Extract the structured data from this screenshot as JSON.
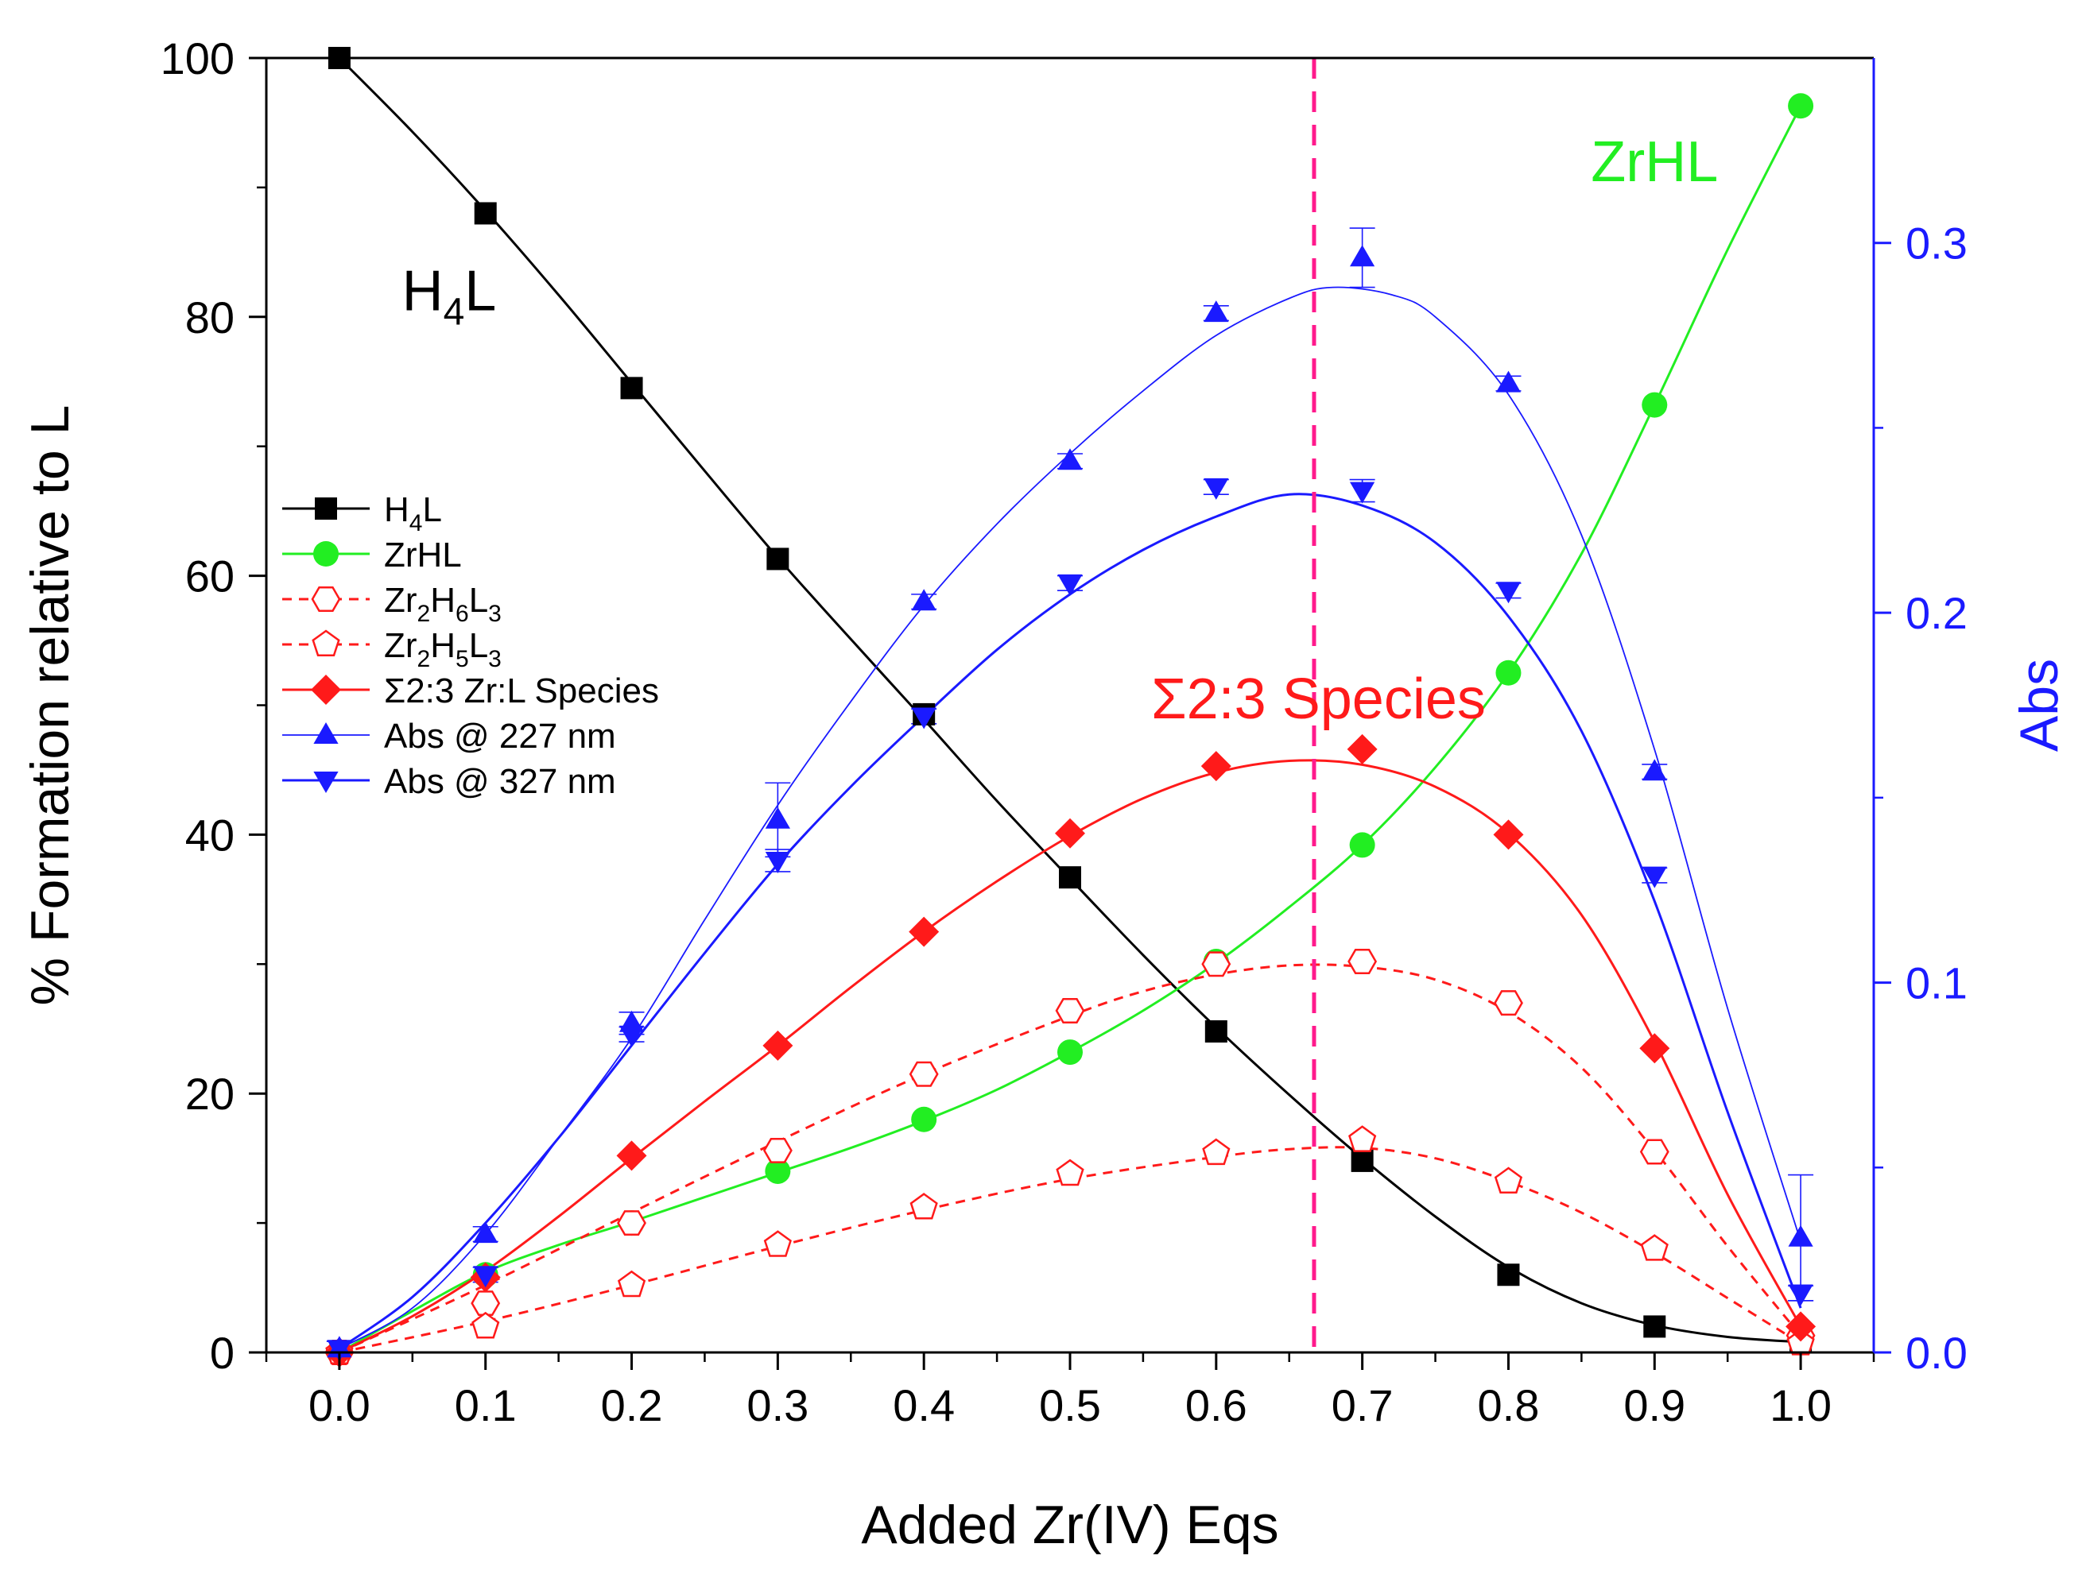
{
  "chart_data": {
    "type": "line",
    "title": "",
    "xlabel": "Added Zr(IV) Eqs",
    "ylabel": "% Formation relative to L",
    "y2label": "Abs",
    "xlim": [
      -0.05,
      1.05
    ],
    "ylim": [
      0,
      100
    ],
    "y2lim": [
      0,
      0.35
    ],
    "x_ticks": [
      0.0,
      0.1,
      0.2,
      0.3,
      0.4,
      0.5,
      0.6,
      0.7,
      0.8,
      0.9,
      1.0
    ],
    "x_tick_labels": [
      "0.0",
      "0.1",
      "0.2",
      "0.3",
      "0.4",
      "0.5",
      "0.6",
      "0.7",
      "0.8",
      "0.9",
      "1.0"
    ],
    "y_ticks": [
      0,
      20,
      40,
      60,
      80,
      100
    ],
    "y_tick_labels": [
      "0",
      "20",
      "40",
      "60",
      "80",
      "100"
    ],
    "y2_ticks": [
      0.0,
      0.1,
      0.2,
      0.3
    ],
    "y2_tick_labels": [
      "0.0",
      "0.1",
      "0.2",
      "0.3"
    ],
    "vline_x": 0.667,
    "colors": {
      "black": "#000000",
      "green": "#22ee22",
      "red": "#ff1a1a",
      "blue": "#1a1aff",
      "magenta": "#ff1a8c"
    },
    "x": [
      0.0,
      0.1,
      0.2,
      0.3,
      0.4,
      0.5,
      0.6,
      0.7,
      0.8,
      0.9,
      1.0
    ],
    "series": [
      {
        "name": "H4L",
        "axis": "left",
        "marker": "square",
        "color": "#000000",
        "line": "solid",
        "values": [
          100,
          88,
          74.5,
          61.3,
          49.3,
          36.7,
          24.8,
          14.8,
          6.0,
          2.0,
          0.8
        ]
      },
      {
        "name": "ZrHL",
        "axis": "left",
        "marker": "circle",
        "color": "#22ee22",
        "line": "solid",
        "values": [
          0,
          6.0,
          10.0,
          14.0,
          18.0,
          23.2,
          30.2,
          39.2,
          52.5,
          73.2,
          96.3
        ]
      },
      {
        "name": "Zr2H6L3",
        "axis": "left",
        "marker": "hexagon-open",
        "color": "#ff1a1a",
        "line": "dashed",
        "values": [
          0,
          3.8,
          10.0,
          15.6,
          21.5,
          26.4,
          30.0,
          30.2,
          27.0,
          15.5,
          1.3
        ]
      },
      {
        "name": "Zr2H5L3",
        "axis": "left",
        "marker": "pentagon-open",
        "color": "#ff1a1a",
        "line": "dashed",
        "values": [
          0,
          2.0,
          5.2,
          8.3,
          11.2,
          13.8,
          15.4,
          16.4,
          13.2,
          8.0,
          0.7
        ]
      },
      {
        "name": "Σ2:3 Zr:L Species",
        "axis": "left",
        "marker": "diamond",
        "color": "#ff1a1a",
        "line": "solid",
        "values": [
          0,
          5.8,
          15.2,
          23.7,
          32.5,
          40.1,
          45.3,
          46.6,
          40.0,
          23.5,
          2.0
        ]
      },
      {
        "name": "Abs @ 227 nm",
        "axis": "right",
        "marker": "triangle-up",
        "color": "#1a1aff",
        "line": "thin",
        "values": [
          0.001,
          0.032,
          0.089,
          0.144,
          0.203,
          0.241,
          0.281,
          0.296,
          0.262,
          0.157,
          0.031
        ],
        "errors": [
          0.002,
          0.002,
          0.003,
          0.01,
          0.002,
          0.002,
          0.002,
          0.008,
          0.002,
          0.002,
          0.017
        ]
      },
      {
        "name": "Abs @ 327 nm",
        "axis": "right",
        "marker": "triangle-down",
        "color": "#1a1aff",
        "line": "solid",
        "values": [
          0.001,
          0.021,
          0.086,
          0.133,
          0.172,
          0.208,
          0.234,
          0.233,
          0.206,
          0.129,
          0.016
        ],
        "errors": [
          0.002,
          0.002,
          0.002,
          0.003,
          0.002,
          0.002,
          0.002,
          0.003,
          0.002,
          0.002,
          0.002
        ]
      }
    ],
    "fits": [
      {
        "for": "H4L",
        "points": [
          [
            0,
            100
          ],
          [
            0.05,
            94.3
          ],
          [
            0.1,
            88.2
          ],
          [
            0.15,
            81.7
          ],
          [
            0.2,
            74.9
          ],
          [
            0.25,
            68.1
          ],
          [
            0.3,
            61.4
          ],
          [
            0.35,
            55.1
          ],
          [
            0.4,
            48.9
          ],
          [
            0.45,
            42.6
          ],
          [
            0.5,
            36.6
          ],
          [
            0.55,
            30.7
          ],
          [
            0.6,
            25.1
          ],
          [
            0.65,
            19.9
          ],
          [
            0.7,
            15.0
          ],
          [
            0.75,
            10.5
          ],
          [
            0.8,
            6.6
          ],
          [
            0.85,
            3.8
          ],
          [
            0.9,
            2.1
          ],
          [
            0.95,
            1.2
          ],
          [
            1.0,
            0.8
          ]
        ]
      },
      {
        "for": "ZrHL",
        "points": [
          [
            0,
            0
          ],
          [
            0.05,
            3.2
          ],
          [
            0.1,
            6.2
          ],
          [
            0.15,
            8.3
          ],
          [
            0.2,
            10.1
          ],
          [
            0.25,
            12.0
          ],
          [
            0.3,
            13.9
          ],
          [
            0.35,
            15.8
          ],
          [
            0.4,
            17.9
          ],
          [
            0.45,
            20.3
          ],
          [
            0.5,
            23.2
          ],
          [
            0.55,
            26.4
          ],
          [
            0.6,
            30.1
          ],
          [
            0.65,
            34.4
          ],
          [
            0.7,
            39.2
          ],
          [
            0.75,
            45.2
          ],
          [
            0.8,
            52.5
          ],
          [
            0.85,
            61.7
          ],
          [
            0.9,
            73.2
          ],
          [
            0.95,
            85.2
          ],
          [
            1.0,
            96.3
          ]
        ]
      },
      {
        "for": "Zr2H6L3",
        "points": [
          [
            0,
            0
          ],
          [
            0.1,
            5.2
          ],
          [
            0.2,
            10.8
          ],
          [
            0.3,
            16.3
          ],
          [
            0.4,
            21.5
          ],
          [
            0.5,
            26.0
          ],
          [
            0.55,
            27.9
          ],
          [
            0.6,
            29.2
          ],
          [
            0.65,
            29.9
          ],
          [
            0.7,
            29.8
          ],
          [
            0.75,
            28.8
          ],
          [
            0.8,
            26.3
          ],
          [
            0.85,
            22.0
          ],
          [
            0.9,
            15.6
          ],
          [
            0.95,
            8.2
          ],
          [
            1.0,
            1.3
          ]
        ]
      },
      {
        "for": "Zr2H5L3",
        "points": [
          [
            0,
            0
          ],
          [
            0.1,
            2.4
          ],
          [
            0.2,
            5.2
          ],
          [
            0.3,
            8.2
          ],
          [
            0.4,
            11.0
          ],
          [
            0.5,
            13.4
          ],
          [
            0.6,
            15.1
          ],
          [
            0.65,
            15.7
          ],
          [
            0.7,
            15.8
          ],
          [
            0.75,
            15.0
          ],
          [
            0.8,
            13.2
          ],
          [
            0.85,
            10.8
          ],
          [
            0.9,
            7.7
          ],
          [
            0.95,
            4.2
          ],
          [
            1.0,
            0.7
          ]
        ]
      },
      {
        "for": "Σ2:3 Zr:L Species",
        "points": [
          [
            0,
            0
          ],
          [
            0.05,
            2.8
          ],
          [
            0.1,
            6.3
          ],
          [
            0.15,
            10.5
          ],
          [
            0.2,
            15.0
          ],
          [
            0.25,
            19.4
          ],
          [
            0.3,
            23.7
          ],
          [
            0.35,
            28.2
          ],
          [
            0.4,
            32.5
          ],
          [
            0.45,
            36.4
          ],
          [
            0.5,
            39.9
          ],
          [
            0.55,
            42.8
          ],
          [
            0.6,
            44.8
          ],
          [
            0.65,
            45.7
          ],
          [
            0.7,
            45.4
          ],
          [
            0.75,
            43.7
          ],
          [
            0.8,
            40.1
          ],
          [
            0.85,
            33.8
          ],
          [
            0.9,
            24.0
          ],
          [
            0.95,
            12.2
          ],
          [
            1.0,
            2.0
          ]
        ]
      },
      {
        "for": "Abs @ 227 nm",
        "points": [
          [
            0,
            0.001
          ],
          [
            0.05,
            0.012
          ],
          [
            0.1,
            0.032
          ],
          [
            0.15,
            0.058
          ],
          [
            0.2,
            0.085
          ],
          [
            0.25,
            0.117
          ],
          [
            0.3,
            0.148
          ],
          [
            0.35,
            0.176
          ],
          [
            0.4,
            0.202
          ],
          [
            0.45,
            0.224
          ],
          [
            0.5,
            0.243
          ],
          [
            0.55,
            0.26
          ],
          [
            0.6,
            0.275
          ],
          [
            0.65,
            0.285
          ],
          [
            0.68,
            0.288
          ],
          [
            0.72,
            0.286
          ],
          [
            0.75,
            0.28
          ],
          [
            0.8,
            0.259
          ],
          [
            0.85,
            0.221
          ],
          [
            0.9,
            0.163
          ],
          [
            0.95,
            0.093
          ],
          [
            1.0,
            0.03
          ]
        ]
      },
      {
        "for": "Abs @ 327 nm",
        "points": [
          [
            0,
            0.001
          ],
          [
            0.05,
            0.015
          ],
          [
            0.1,
            0.035
          ],
          [
            0.15,
            0.058
          ],
          [
            0.2,
            0.083
          ],
          [
            0.25,
            0.108
          ],
          [
            0.3,
            0.132
          ],
          [
            0.35,
            0.153
          ],
          [
            0.4,
            0.172
          ],
          [
            0.45,
            0.19
          ],
          [
            0.5,
            0.205
          ],
          [
            0.55,
            0.217
          ],
          [
            0.6,
            0.226
          ],
          [
            0.65,
            0.232
          ],
          [
            0.7,
            0.229
          ],
          [
            0.75,
            0.219
          ],
          [
            0.8,
            0.199
          ],
          [
            0.85,
            0.168
          ],
          [
            0.9,
            0.122
          ],
          [
            0.95,
            0.065
          ],
          [
            1.0,
            0.012
          ]
        ]
      }
    ],
    "annotations": [
      {
        "text": "H",
        "sub": "4",
        "tail": "L",
        "color": "#000000",
        "x": 0.07,
        "y": 80.5
      },
      {
        "text": "ZrHL",
        "color": "#22ee22",
        "x": 0.9,
        "y": 90.5
      },
      {
        "text": "Σ2:3 Species",
        "color": "#ff1a1a",
        "x": 0.67,
        "y": 49.0
      }
    ],
    "legend": {
      "placement": "middle-left",
      "entries": [
        {
          "label": "H",
          "sub1": "4",
          "rest": "L",
          "marker": "square",
          "color": "#000000",
          "line": "solid"
        },
        {
          "label": "ZrHL",
          "marker": "circle",
          "color": "#22ee22",
          "line": "solid"
        },
        {
          "label": "Zr",
          "sub1": "2",
          "mid": "H",
          "sub2": "6",
          "mid2": "L",
          "sub3": "3",
          "marker": "hexagon-open",
          "color": "#ff1a1a",
          "line": "dashed"
        },
        {
          "label": "Zr",
          "sub1": "2",
          "mid": "H",
          "sub2": "5",
          "mid2": "L",
          "sub3": "3",
          "marker": "pentagon-open",
          "color": "#ff1a1a",
          "line": "dashed"
        },
        {
          "label": "Σ2:3 Zr:L Species",
          "marker": "diamond",
          "color": "#ff1a1a",
          "line": "solid"
        },
        {
          "label": "Abs @ 227 nm",
          "marker": "triangle-up",
          "color": "#1a1aff",
          "line": "thin"
        },
        {
          "label": "Abs @ 327 nm",
          "marker": "triangle-down",
          "color": "#1a1aff",
          "line": "solid"
        }
      ]
    }
  }
}
